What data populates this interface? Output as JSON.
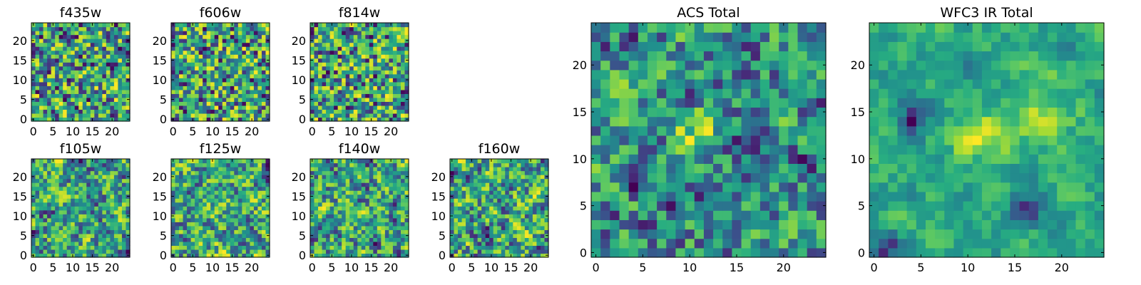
{
  "chart_data": [
    {
      "type": "heatmap",
      "title": "f435w",
      "x_ticks": [
        "0",
        "5",
        "10",
        "15",
        "20"
      ],
      "y_ticks": [
        "0",
        "5",
        "10",
        "15",
        "20"
      ],
      "xlim": [
        0,
        25
      ],
      "ylim": [
        0,
        25
      ],
      "grid": false,
      "seed": 11,
      "smooth": 0,
      "colormap": "viridis"
    },
    {
      "type": "heatmap",
      "title": "f606w",
      "x_ticks": [
        "0",
        "5",
        "10",
        "15",
        "20"
      ],
      "y_ticks": [
        "0",
        "5",
        "10",
        "15",
        "20"
      ],
      "xlim": [
        0,
        25
      ],
      "ylim": [
        0,
        25
      ],
      "grid": false,
      "seed": 23,
      "smooth": 0,
      "colormap": "viridis"
    },
    {
      "type": "heatmap",
      "title": "f814w",
      "x_ticks": [
        "0",
        "5",
        "10",
        "15",
        "20"
      ],
      "y_ticks": [
        "0",
        "5",
        "10",
        "15",
        "20"
      ],
      "xlim": [
        0,
        25
      ],
      "ylim": [
        0,
        25
      ],
      "grid": false,
      "seed": 37,
      "smooth": 0,
      "colormap": "viridis"
    },
    {
      "type": "heatmap",
      "title": "f105w",
      "x_ticks": [
        "0",
        "5",
        "10",
        "15",
        "20"
      ],
      "y_ticks": [
        "0",
        "5",
        "10",
        "15",
        "20"
      ],
      "xlim": [
        0,
        25
      ],
      "ylim": [
        0,
        25
      ],
      "grid": false,
      "seed": 41,
      "smooth": 1,
      "colormap": "viridis"
    },
    {
      "type": "heatmap",
      "title": "f125w",
      "x_ticks": [
        "0",
        "5",
        "10",
        "15",
        "20"
      ],
      "y_ticks": [
        "0",
        "5",
        "10",
        "15",
        "20"
      ],
      "xlim": [
        0,
        25
      ],
      "ylim": [
        0,
        25
      ],
      "grid": false,
      "seed": 53,
      "smooth": 1,
      "colormap": "viridis"
    },
    {
      "type": "heatmap",
      "title": "f140w",
      "x_ticks": [
        "0",
        "5",
        "10",
        "15",
        "20"
      ],
      "y_ticks": [
        "0",
        "5",
        "10",
        "15",
        "20"
      ],
      "xlim": [
        0,
        25
      ],
      "ylim": [
        0,
        25
      ],
      "grid": false,
      "seed": 67,
      "smooth": 1,
      "colormap": "viridis"
    },
    {
      "type": "heatmap",
      "title": "f160w",
      "x_ticks": [
        "0",
        "5",
        "10",
        "15",
        "20"
      ],
      "y_ticks": [
        "0",
        "5",
        "10",
        "15",
        "20"
      ],
      "xlim": [
        0,
        25
      ],
      "ylim": [
        0,
        25
      ],
      "grid": false,
      "seed": 79,
      "smooth": 1,
      "colormap": "viridis"
    },
    {
      "type": "heatmap",
      "title": "ACS Total",
      "x_ticks": [
        "0",
        "5",
        "10",
        "15",
        "20"
      ],
      "y_ticks": [
        "0",
        "5",
        "10",
        "15",
        "20"
      ],
      "xlim": [
        0,
        25
      ],
      "ylim": [
        0,
        25
      ],
      "grid": false,
      "seed": 83,
      "smooth": 1,
      "colormap": "viridis",
      "features": [
        {
          "x": 10.5,
          "y": 13,
          "sigma": 1.6,
          "amp": 0.35
        }
      ]
    },
    {
      "type": "heatmap",
      "title": "WFC3 IR Total",
      "x_ticks": [
        "0",
        "5",
        "10",
        "15",
        "20"
      ],
      "y_ticks": [
        "0",
        "5",
        "10",
        "15",
        "20"
      ],
      "xlim": [
        0,
        25
      ],
      "ylim": [
        0,
        25
      ],
      "grid": false,
      "seed": 97,
      "smooth": 2,
      "colormap": "viridis",
      "features": [
        {
          "x": 11.5,
          "y": 12.5,
          "sigma": 1.8,
          "amp": 0.55
        },
        {
          "x": 17.5,
          "y": 15.5,
          "sigma": 2.6,
          "amp": 0.45
        },
        {
          "x": 4,
          "y": 14,
          "sigma": 1.2,
          "amp": -0.55
        },
        {
          "x": 16,
          "y": 5,
          "sigma": 1.2,
          "amp": -0.55
        },
        {
          "x": 1,
          "y": 0.5,
          "sigma": 1.3,
          "amp": -0.6
        }
      ]
    }
  ]
}
